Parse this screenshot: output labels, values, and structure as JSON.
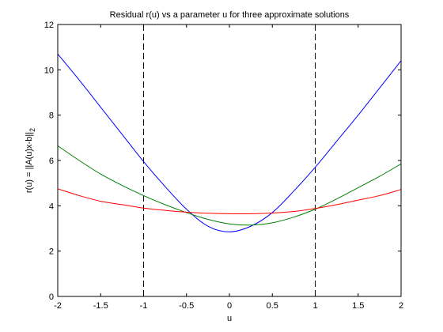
{
  "chart_data": {
    "type": "line",
    "title": "Residual r(u) vs a parameter u for three approximate solutions",
    "xlabel": "u",
    "ylabel_main": "r(u) = ||A(u)x-b||",
    "ylabel_sub": "2",
    "xlim": [
      -2,
      2
    ],
    "ylim": [
      0,
      12
    ],
    "xticks": [
      "-2",
      "-1.5",
      "-1",
      "-0.5",
      "0",
      "0.5",
      "1",
      "1.5",
      "2"
    ],
    "yticks": [
      "0",
      "2",
      "4",
      "6",
      "8",
      "10",
      "12"
    ],
    "grid": false,
    "vertical_lines": [
      -1,
      1
    ],
    "series": [
      {
        "color": "#0000ff",
        "x": [
          -2,
          -1.75,
          -1.5,
          -1.25,
          -1,
          -0.75,
          -0.5,
          -0.25,
          0,
          0.25,
          0.5,
          0.75,
          1,
          1.25,
          1.5,
          1.75,
          2
        ],
        "y": [
          10.7,
          9.55,
          8.35,
          7.15,
          5.95,
          4.85,
          3.85,
          3.1,
          2.85,
          3.1,
          3.7,
          4.65,
          5.7,
          6.85,
          8.0,
          9.2,
          10.4
        ]
      },
      {
        "color": "#008000",
        "x": [
          -2,
          -1.75,
          -1.5,
          -1.25,
          -1,
          -0.75,
          -0.5,
          -0.25,
          0,
          0.25,
          0.5,
          0.75,
          1,
          1.25,
          1.5,
          1.75,
          2
        ],
        "y": [
          6.65,
          6.0,
          5.4,
          4.9,
          4.45,
          4.05,
          3.7,
          3.4,
          3.2,
          3.15,
          3.25,
          3.5,
          3.85,
          4.3,
          4.8,
          5.3,
          5.85
        ]
      },
      {
        "color": "#ff0000",
        "x": [
          -2,
          -1.75,
          -1.5,
          -1.25,
          -1,
          -0.75,
          -0.5,
          -0.25,
          0,
          0.25,
          0.5,
          0.75,
          1,
          1.25,
          1.5,
          1.75,
          2
        ],
        "y": [
          4.75,
          4.45,
          4.2,
          4.05,
          3.9,
          3.8,
          3.72,
          3.67,
          3.65,
          3.65,
          3.68,
          3.75,
          3.88,
          4.05,
          4.25,
          4.45,
          4.72
        ]
      }
    ]
  }
}
